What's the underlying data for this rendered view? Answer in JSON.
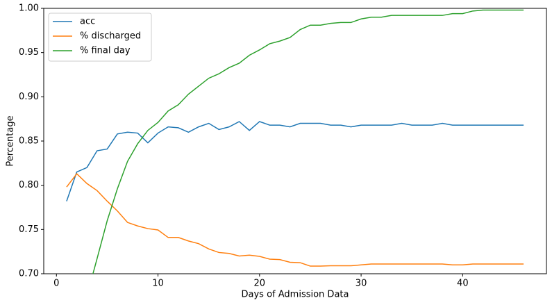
{
  "chart_data": {
    "type": "line",
    "xlabel": "Days of Admission Data",
    "ylabel": "Percentage",
    "x": [
      1,
      2,
      3,
      4,
      5,
      6,
      7,
      8,
      9,
      10,
      11,
      12,
      13,
      14,
      15,
      16,
      17,
      18,
      19,
      20,
      21,
      22,
      23,
      24,
      25,
      26,
      27,
      28,
      29,
      30,
      31,
      32,
      33,
      34,
      35,
      36,
      37,
      38,
      39,
      40,
      41,
      42,
      43,
      44,
      45,
      46
    ],
    "series": [
      {
        "name": "acc",
        "color": "#1f77b4",
        "values": [
          0.782,
          0.815,
          0.82,
          0.839,
          0.841,
          0.858,
          0.86,
          0.859,
          0.848,
          0.859,
          0.866,
          0.865,
          0.86,
          0.866,
          0.87,
          0.863,
          0.866,
          0.872,
          0.862,
          0.872,
          0.868,
          0.868,
          0.866,
          0.87,
          0.87,
          0.87,
          0.868,
          0.868,
          0.866,
          0.868,
          0.868,
          0.868,
          0.868,
          0.87,
          0.868,
          0.868,
          0.868,
          0.87,
          0.868,
          0.868,
          0.868,
          0.868,
          0.868,
          0.868,
          0.868,
          0.868
        ]
      },
      {
        "name": "% discharged",
        "color": "#ff7f0e",
        "values": [
          0.798,
          0.813,
          0.802,
          0.794,
          0.782,
          0.771,
          0.758,
          0.754,
          0.751,
          0.7495,
          0.741,
          0.741,
          0.737,
          0.734,
          0.728,
          0.724,
          0.723,
          0.72,
          0.721,
          0.7196,
          0.7165,
          0.716,
          0.713,
          0.7125,
          0.7086,
          0.7086,
          0.709,
          0.709,
          0.709,
          0.71,
          0.711,
          0.711,
          0.711,
          0.711,
          0.711,
          0.711,
          0.711,
          0.711,
          0.71,
          0.71,
          0.711,
          0.711,
          0.711,
          0.711,
          0.711,
          0.711
        ]
      },
      {
        "name": "% final day",
        "color": "#2ca02c",
        "values": [
          null,
          null,
          0.675,
          0.717,
          0.76,
          0.796,
          0.827,
          0.847,
          0.862,
          0.871,
          0.884,
          0.891,
          0.903,
          0.912,
          0.921,
          0.926,
          0.933,
          0.938,
          0.947,
          0.953,
          0.96,
          0.963,
          0.967,
          0.976,
          0.981,
          0.981,
          0.983,
          0.984,
          0.984,
          0.988,
          0.99,
          0.99,
          0.992,
          0.992,
          0.992,
          0.992,
          0.992,
          0.992,
          0.994,
          0.994,
          0.997,
          0.998,
          0.998,
          0.998,
          0.998,
          0.998
        ]
      }
    ],
    "xlim": [
      -1.25,
      48.25
    ],
    "ylim": [
      0.7,
      1.0
    ],
    "xticks": [
      0,
      10,
      20,
      30,
      40
    ],
    "yticks": [
      {
        "value": 0.7,
        "label": "0.70"
      },
      {
        "value": 0.75,
        "label": "0.75"
      },
      {
        "value": 0.8,
        "label": "0.80"
      },
      {
        "value": 0.85,
        "label": "0.85"
      },
      {
        "value": 0.9,
        "label": "0.90"
      },
      {
        "value": 0.95,
        "label": "0.95"
      },
      {
        "value": 1.0,
        "label": "1.00"
      }
    ],
    "legend": "upper left"
  }
}
